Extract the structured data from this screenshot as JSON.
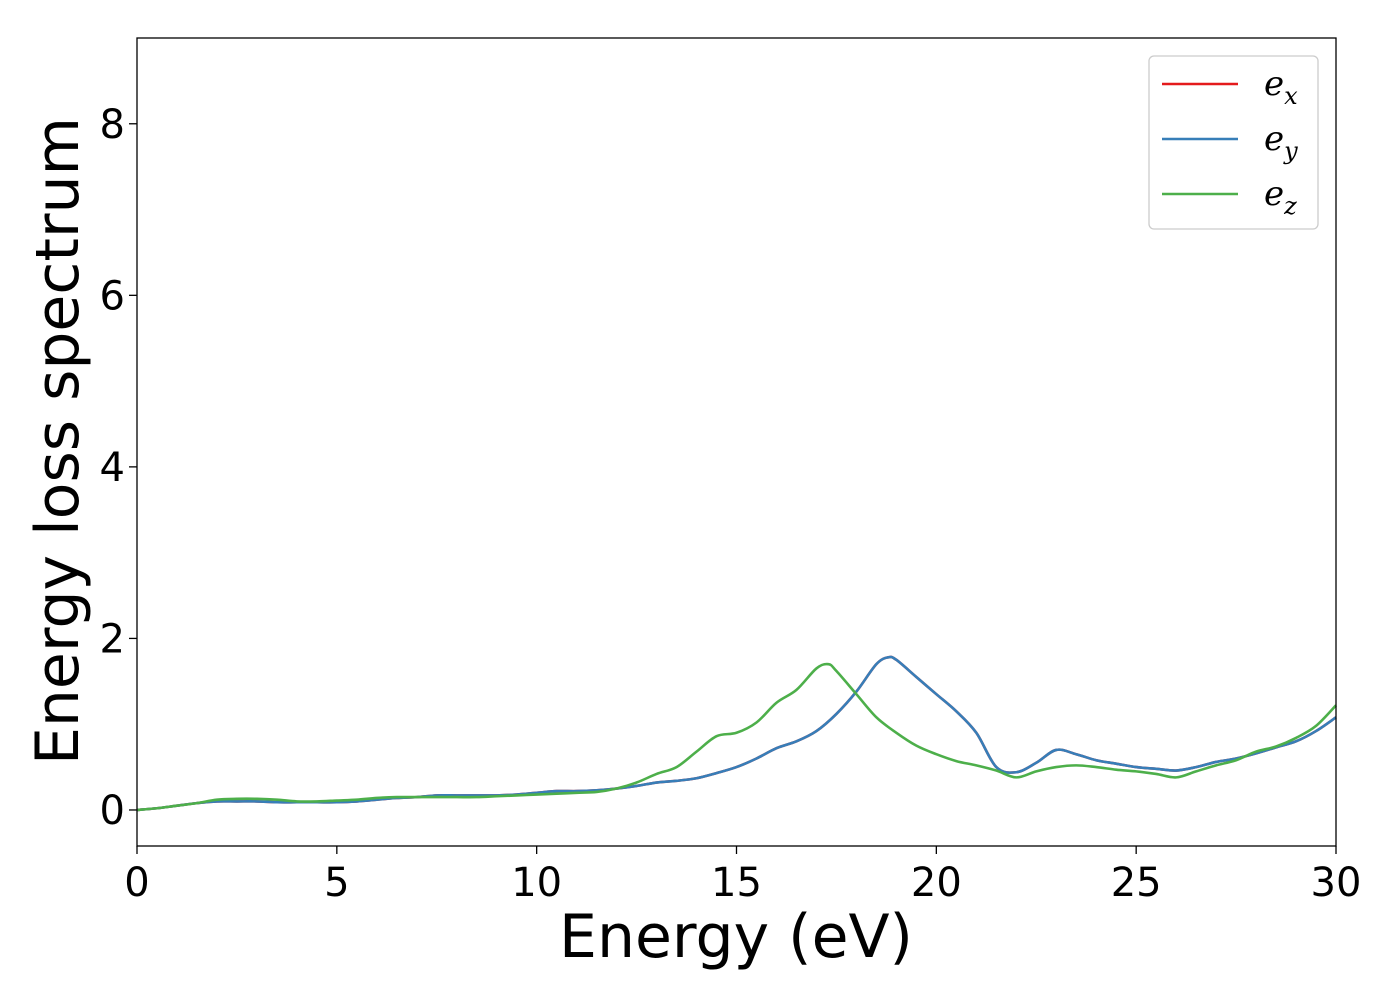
{
  "chart_data": {
    "type": "line",
    "title": "",
    "xlabel": "Energy (eV)",
    "ylabel": "Energy loss spectrum",
    "xlim": [
      0,
      30
    ],
    "ylim": [
      -0.42,
      9.0
    ],
    "xticks": [
      0,
      5,
      10,
      15,
      20,
      25,
      30
    ],
    "yticks": [
      0,
      2,
      4,
      6,
      8
    ],
    "grid": false,
    "legend_position": "top-right",
    "series": [
      {
        "name": "e_x",
        "legend_base": "e",
        "legend_sub": "x",
        "color": "#e41a1c",
        "x": [
          0,
          0.5,
          1,
          1.5,
          2,
          2.5,
          3,
          3.5,
          4,
          4.5,
          5,
          5.5,
          6,
          6.5,
          7,
          7.5,
          8,
          8.5,
          9,
          9.5,
          10,
          10.5,
          11,
          11.5,
          12,
          12.5,
          13,
          13.5,
          14,
          14.5,
          15,
          15.5,
          16,
          16.5,
          17,
          17.5,
          18,
          18.5,
          18.8,
          19,
          19.5,
          20,
          20.5,
          21,
          21.5,
          22,
          22.5,
          23,
          23.5,
          24,
          24.5,
          25,
          25.5,
          26,
          26.5,
          27,
          27.5,
          28,
          28.5,
          29,
          29.5,
          30
        ],
        "y": [
          0,
          0.02,
          0.05,
          0.08,
          0.1,
          0.1,
          0.1,
          0.09,
          0.09,
          0.09,
          0.09,
          0.1,
          0.12,
          0.14,
          0.15,
          0.17,
          0.17,
          0.17,
          0.17,
          0.18,
          0.2,
          0.22,
          0.22,
          0.23,
          0.25,
          0.28,
          0.32,
          0.34,
          0.37,
          0.43,
          0.5,
          0.6,
          0.72,
          0.8,
          0.92,
          1.12,
          1.38,
          1.7,
          1.78,
          1.75,
          1.55,
          1.35,
          1.15,
          0.9,
          0.5,
          0.44,
          0.55,
          0.7,
          0.65,
          0.58,
          0.54,
          0.5,
          0.48,
          0.46,
          0.5,
          0.56,
          0.6,
          0.66,
          0.73,
          0.8,
          0.92,
          1.08
        ]
      },
      {
        "name": "e_y",
        "legend_base": "e",
        "legend_sub": "y",
        "color": "#377eb8",
        "x": [
          0,
          0.5,
          1,
          1.5,
          2,
          2.5,
          3,
          3.5,
          4,
          4.5,
          5,
          5.5,
          6,
          6.5,
          7,
          7.5,
          8,
          8.5,
          9,
          9.5,
          10,
          10.5,
          11,
          11.5,
          12,
          12.5,
          13,
          13.5,
          14,
          14.5,
          15,
          15.5,
          16,
          16.5,
          17,
          17.5,
          18,
          18.5,
          18.8,
          19,
          19.5,
          20,
          20.5,
          21,
          21.5,
          22,
          22.5,
          23,
          23.5,
          24,
          24.5,
          25,
          25.5,
          26,
          26.5,
          27,
          27.5,
          28,
          28.5,
          29,
          29.5,
          30
        ],
        "y": [
          0,
          0.02,
          0.05,
          0.08,
          0.1,
          0.1,
          0.1,
          0.09,
          0.09,
          0.09,
          0.09,
          0.1,
          0.12,
          0.14,
          0.15,
          0.17,
          0.17,
          0.17,
          0.17,
          0.18,
          0.2,
          0.22,
          0.22,
          0.23,
          0.25,
          0.28,
          0.32,
          0.34,
          0.37,
          0.43,
          0.5,
          0.6,
          0.72,
          0.8,
          0.92,
          1.12,
          1.38,
          1.7,
          1.78,
          1.75,
          1.55,
          1.35,
          1.15,
          0.9,
          0.5,
          0.44,
          0.55,
          0.7,
          0.65,
          0.58,
          0.54,
          0.5,
          0.48,
          0.46,
          0.5,
          0.56,
          0.6,
          0.66,
          0.73,
          0.8,
          0.92,
          1.08
        ]
      },
      {
        "name": "e_z",
        "legend_base": "e",
        "legend_sub": "z",
        "color": "#4daf4a",
        "x": [
          0,
          0.5,
          1,
          1.5,
          2,
          2.5,
          3,
          3.5,
          4,
          4.5,
          5,
          5.5,
          6,
          6.5,
          7,
          7.5,
          8,
          8.5,
          9,
          9.5,
          10,
          10.5,
          11,
          11.5,
          12,
          12.5,
          13,
          13.5,
          14,
          14.5,
          15,
          15.5,
          16,
          16.5,
          17,
          17.3,
          17.5,
          18,
          18.5,
          19,
          19.5,
          20,
          20.5,
          21,
          21.5,
          22,
          22.5,
          23,
          23.5,
          24,
          24.5,
          25,
          25.5,
          26,
          26.5,
          27,
          27.5,
          28,
          28.5,
          29,
          29.5,
          30
        ],
        "y": [
          0,
          0.02,
          0.05,
          0.08,
          0.12,
          0.13,
          0.13,
          0.12,
          0.1,
          0.1,
          0.11,
          0.12,
          0.14,
          0.15,
          0.15,
          0.15,
          0.15,
          0.15,
          0.16,
          0.17,
          0.18,
          0.19,
          0.2,
          0.21,
          0.25,
          0.32,
          0.42,
          0.5,
          0.68,
          0.86,
          0.9,
          1.02,
          1.25,
          1.4,
          1.65,
          1.7,
          1.62,
          1.35,
          1.08,
          0.9,
          0.75,
          0.65,
          0.57,
          0.52,
          0.46,
          0.38,
          0.45,
          0.5,
          0.52,
          0.5,
          0.47,
          0.45,
          0.42,
          0.38,
          0.45,
          0.52,
          0.58,
          0.68,
          0.74,
          0.84,
          0.98,
          1.22
        ]
      }
    ]
  }
}
